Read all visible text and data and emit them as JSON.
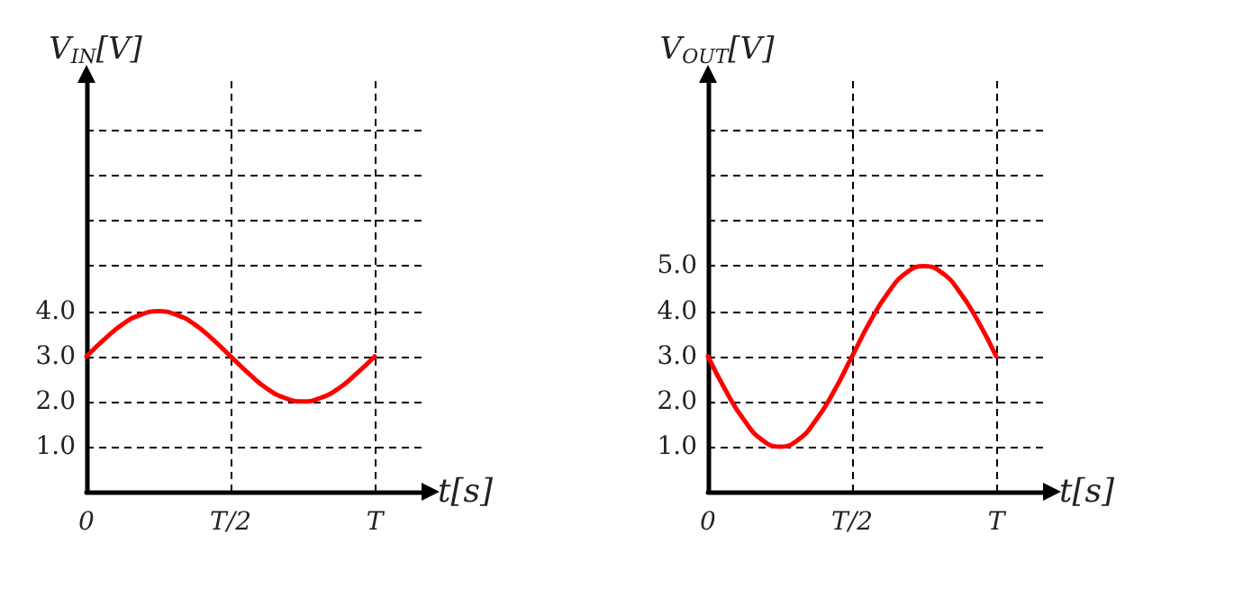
{
  "chart_data": [
    {
      "type": "line",
      "xlabel": "t[s]",
      "ylabel": "V$_{IN}$[V]",
      "categories": [
        "0",
        null,
        null,
        null,
        null,
        null,
        null,
        null,
        "T/2",
        null,
        null,
        null,
        null,
        null,
        null,
        null,
        "T"
      ],
      "series": [
        {
          "color": "#ff0000",
          "values": [
            3,
            3.38,
            3.71,
            3.92,
            4,
            3.92,
            3.71,
            3.38,
            3,
            2.62,
            2.29,
            2.08,
            2,
            2.08,
            2.29,
            2.62,
            3
          ]
        }
      ],
      "ylim": [
        0,
        9.1
      ],
      "yticks": [
        {
          "value": 1,
          "label": "1.0"
        },
        {
          "value": 2,
          "label": "2.0"
        },
        {
          "value": 3,
          "label": "3.0"
        },
        {
          "value": 4,
          "label": "4.0"
        },
        {
          "value": 5,
          "label": null
        },
        {
          "value": 6,
          "label": null
        },
        {
          "value": 7,
          "label": null
        },
        {
          "value": 8,
          "label": null
        }
      ],
      "grid": true,
      "marker": "none",
      "line_style": "solid"
    },
    {
      "type": "line",
      "xlabel": "t[s]",
      "ylabel": "V$_{OUT}$[V]",
      "categories": [
        "0",
        null,
        null,
        null,
        null,
        null,
        null,
        null,
        "T/2",
        null,
        null,
        null,
        null,
        null,
        null,
        null,
        "T"
      ],
      "series": [
        {
          "color": "#ff0000",
          "values": [
            3,
            2.23,
            1.59,
            1.15,
            1,
            1.15,
            1.59,
            2.23,
            3,
            3.77,
            4.41,
            4.85,
            5,
            4.85,
            4.41,
            3.77,
            3
          ]
        }
      ],
      "ylim": [
        0,
        9.1
      ],
      "yticks": [
        {
          "value": 1,
          "label": "1.0"
        },
        {
          "value": 2,
          "label": "2.0"
        },
        {
          "value": 3,
          "label": "3.0"
        },
        {
          "value": 4,
          "label": "4.0"
        },
        {
          "value": 5,
          "label": "5.0"
        },
        {
          "value": 6,
          "label": null
        },
        {
          "value": 7,
          "label": null
        },
        {
          "value": 8,
          "label": null
        }
      ],
      "grid": true,
      "marker": "none",
      "line_style": "solid"
    }
  ]
}
